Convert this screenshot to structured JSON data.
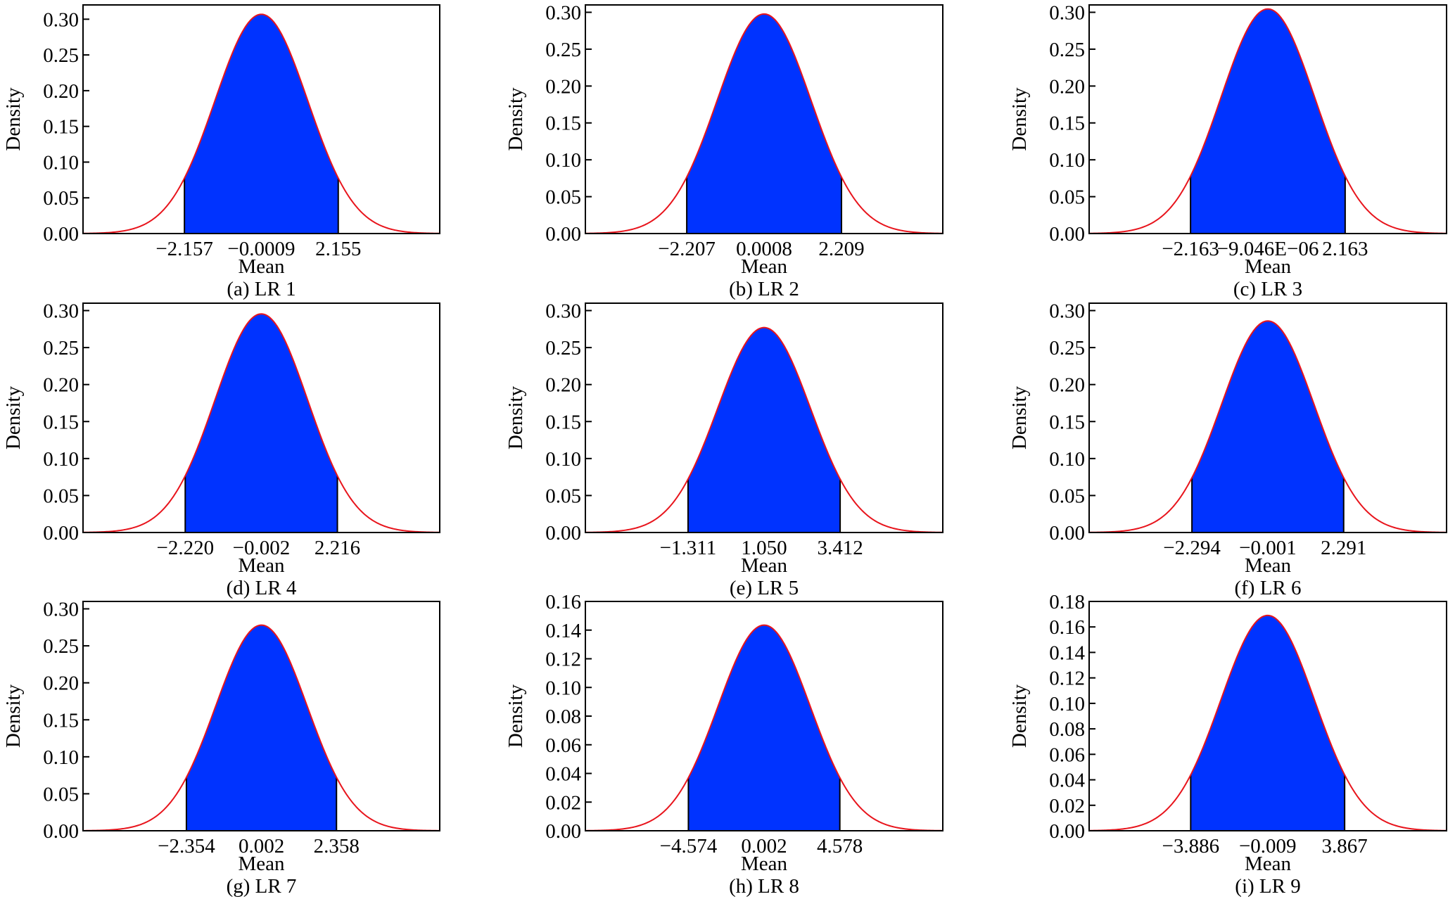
{
  "colors": {
    "fill": "#0033ff",
    "curve": "#e8141c",
    "axis": "#000000",
    "bound": "#000000"
  },
  "chart_data": [
    {
      "type": "area",
      "caption": "(a) LR 1",
      "xlabel": "Mean",
      "ylabel": "Density",
      "mean": -0.0009,
      "sd": 1.3,
      "lower": -2.157,
      "upper": 2.155,
      "lower_label": "−2.157",
      "mean_label": "−0.0009",
      "upper_label": "2.155",
      "xlim": [
        -5.0,
        5.0
      ],
      "ylim": [
        0,
        0.32
      ],
      "yticks": [
        0.0,
        0.05,
        0.1,
        0.15,
        0.2,
        0.25,
        0.3
      ],
      "ytick_labels": [
        "0.00",
        "0.05",
        "0.10",
        "0.15",
        "0.20",
        "0.25",
        "0.30"
      ],
      "grid": false
    },
    {
      "type": "area",
      "caption": "(b) LR 2",
      "xlabel": "Mean",
      "ylabel": "Density",
      "mean": 0.0008,
      "sd": 1.34,
      "lower": -2.207,
      "upper": 2.209,
      "lower_label": "−2.207",
      "mean_label": "0.0008",
      "upper_label": "2.209",
      "xlim": [
        -5.1,
        5.1
      ],
      "ylim": [
        0,
        0.31
      ],
      "yticks": [
        0.0,
        0.05,
        0.1,
        0.15,
        0.2,
        0.25,
        0.3
      ],
      "ytick_labels": [
        "0.00",
        "0.05",
        "0.10",
        "0.15",
        "0.20",
        "0.25",
        "0.30"
      ],
      "grid": false
    },
    {
      "type": "area",
      "caption": "(c) LR 3",
      "xlabel": "Mean",
      "ylabel": "Density",
      "mean": -9.046e-06,
      "sd": 1.31,
      "lower": -2.163,
      "upper": 2.163,
      "lower_label": "−2.163",
      "mean_label": "−9.046E−06",
      "upper_label": "2.163",
      "xlim": [
        -5.0,
        5.0
      ],
      "ylim": [
        0,
        0.31
      ],
      "yticks": [
        0.0,
        0.05,
        0.1,
        0.15,
        0.2,
        0.25,
        0.3
      ],
      "ytick_labels": [
        "0.00",
        "0.05",
        "0.10",
        "0.15",
        "0.20",
        "0.25",
        "0.30"
      ],
      "grid": false
    },
    {
      "type": "area",
      "caption": "(d) LR 4",
      "xlabel": "Mean",
      "ylabel": "Density",
      "mean": -0.002,
      "sd": 1.35,
      "lower": -2.22,
      "upper": 2.216,
      "lower_label": "−2.220",
      "mean_label": "−0.002",
      "upper_label": "2.216",
      "xlim": [
        -5.2,
        5.2
      ],
      "ylim": [
        0,
        0.31
      ],
      "yticks": [
        0.0,
        0.05,
        0.1,
        0.15,
        0.2,
        0.25,
        0.3
      ],
      "ytick_labels": [
        "0.00",
        "0.05",
        "0.10",
        "0.15",
        "0.20",
        "0.25",
        "0.30"
      ],
      "grid": false
    },
    {
      "type": "area",
      "caption": "(e) LR 5",
      "xlabel": "Mean",
      "ylabel": "Density",
      "mean": 1.05,
      "sd": 1.44,
      "lower": -1.311,
      "upper": 3.412,
      "lower_label": "−1.311",
      "mean_label": "1.050",
      "upper_label": "3.412",
      "xlim": [
        -4.5,
        6.6
      ],
      "ylim": [
        0,
        0.31
      ],
      "yticks": [
        0.0,
        0.05,
        0.1,
        0.15,
        0.2,
        0.25,
        0.3
      ],
      "ytick_labels": [
        "0.00",
        "0.05",
        "0.10",
        "0.15",
        "0.20",
        "0.25",
        "0.30"
      ],
      "grid": false
    },
    {
      "type": "area",
      "caption": "(f) LR 6",
      "xlabel": "Mean",
      "ylabel": "Density",
      "mean": -0.001,
      "sd": 1.395,
      "lower": -2.294,
      "upper": 2.291,
      "lower_label": "−2.294",
      "mean_label": "−0.001",
      "upper_label": "2.291",
      "xlim": [
        -5.4,
        5.4
      ],
      "ylim": [
        0,
        0.31
      ],
      "yticks": [
        0.0,
        0.05,
        0.1,
        0.15,
        0.2,
        0.25,
        0.3
      ],
      "ytick_labels": [
        "0.00",
        "0.05",
        "0.10",
        "0.15",
        "0.20",
        "0.25",
        "0.30"
      ],
      "grid": false
    },
    {
      "type": "area",
      "caption": "(g) LR 7",
      "xlabel": "Mean",
      "ylabel": "Density",
      "mean": 0.002,
      "sd": 1.435,
      "lower": -2.354,
      "upper": 2.358,
      "lower_label": "−2.354",
      "mean_label": "0.002",
      "upper_label": "2.358",
      "xlim": [
        -5.6,
        5.6
      ],
      "ylim": [
        0,
        0.31
      ],
      "yticks": [
        0.0,
        0.05,
        0.1,
        0.15,
        0.2,
        0.25,
        0.3
      ],
      "ytick_labels": [
        "0.00",
        "0.05",
        "0.10",
        "0.15",
        "0.20",
        "0.25",
        "0.30"
      ],
      "grid": false
    },
    {
      "type": "area",
      "caption": "(h) LR 8",
      "xlabel": "Mean",
      "ylabel": "Density",
      "mean": 0.002,
      "sd": 2.78,
      "lower": -4.574,
      "upper": 4.578,
      "lower_label": "−4.574",
      "mean_label": "0.002",
      "upper_label": "4.578",
      "xlim": [
        -10.8,
        10.8
      ],
      "ylim": [
        0,
        0.16
      ],
      "yticks": [
        0.0,
        0.02,
        0.04,
        0.06,
        0.08,
        0.1,
        0.12,
        0.14,
        0.16
      ],
      "ytick_labels": [
        "0.00",
        "0.02",
        "0.04",
        "0.06",
        "0.08",
        "0.10",
        "0.12",
        "0.14",
        "0.16"
      ],
      "grid": false
    },
    {
      "type": "area",
      "caption": "(i) LR 9",
      "xlabel": "Mean",
      "ylabel": "Density",
      "mean": -0.009,
      "sd": 2.36,
      "lower": -3.886,
      "upper": 3.867,
      "lower_label": "−3.886",
      "mean_label": "−0.009",
      "upper_label": "3.867",
      "xlim": [
        -9.0,
        9.0
      ],
      "ylim": [
        0,
        0.18
      ],
      "yticks": [
        0.0,
        0.02,
        0.04,
        0.06,
        0.08,
        0.1,
        0.12,
        0.14,
        0.16,
        0.18
      ],
      "ytick_labels": [
        "0.00",
        "0.02",
        "0.04",
        "0.06",
        "0.08",
        "0.10",
        "0.12",
        "0.14",
        "0.16",
        "0.18"
      ],
      "grid": false
    }
  ]
}
